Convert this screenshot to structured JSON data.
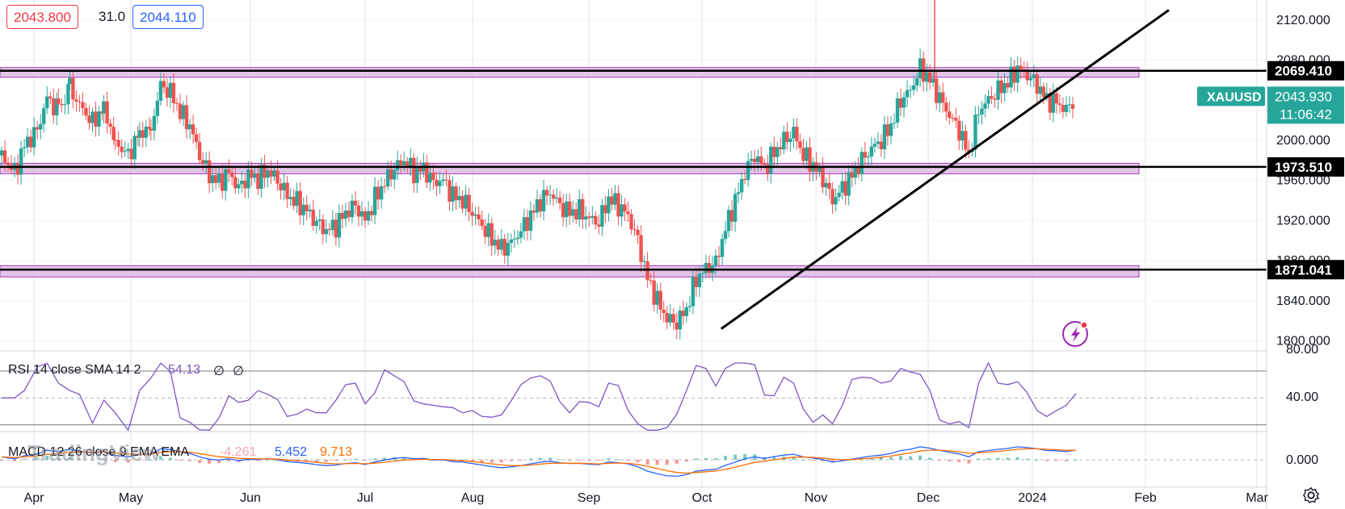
{
  "header": {
    "bid": "2043.800",
    "spread": "31.0",
    "ask": "2044.110"
  },
  "price_axis": {
    "ticks": [
      "2120.000",
      "2080.000",
      "2000.000",
      "1960.000",
      "1920.000",
      "1880.000",
      "1840.000",
      "1800.000"
    ],
    "symbol": "XAUUSD",
    "last_price": "2043.930",
    "countdown": "11:06:42",
    "levels": [
      "2069.410",
      "1973.510",
      "1871.041"
    ]
  },
  "time_axis": {
    "labels": [
      "Apr",
      "May",
      "Jun",
      "Jul",
      "Aug",
      "Sep",
      "Oct",
      "Nov",
      "Dec",
      "2024",
      "Feb",
      "Mar"
    ]
  },
  "rsi": {
    "label": "RSI 14 close SMA 14 2",
    "value": "54.13",
    "extra1": "∅",
    "extra2": "∅",
    "ticks": [
      "80.00",
      "40.00"
    ]
  },
  "macd": {
    "label": "MACD 12 26 close 9 EMA EMA",
    "hist": "-4.261",
    "macd": "5.452",
    "signal": "9.713",
    "ticks": [
      "0.000"
    ]
  },
  "watermark": "TradingView",
  "colors": {
    "up": "#26a69a",
    "down": "#ef5350",
    "zone_fill": "#e1bee7",
    "zone_stroke": "#9c27b0",
    "rsi_line": "#7e57c2",
    "macd_line": "#2962ff",
    "signal_line": "#ff6d00",
    "accent_teal": "#26a69a"
  },
  "chart_data": {
    "type": "candlestick",
    "symbol": "XAUUSD",
    "ylim": [
      1790,
      2140
    ],
    "x_months": [
      "Apr",
      "May",
      "Jun",
      "Jul",
      "Aug",
      "Sep",
      "Oct",
      "Nov",
      "Dec",
      "2024",
      "Feb",
      "Mar"
    ],
    "close_path": [
      [
        0,
        1985
      ],
      [
        8,
        1968
      ],
      [
        14,
        1995
      ],
      [
        22,
        2010
      ],
      [
        28,
        2042
      ],
      [
        35,
        2030
      ],
      [
        42,
        2052
      ],
      [
        48,
        2035
      ],
      [
        56,
        2018
      ],
      [
        63,
        2032
      ],
      [
        70,
        1998
      ],
      [
        78,
        1985
      ],
      [
        85,
        2008
      ],
      [
        92,
        2012
      ],
      [
        98,
        2055
      ],
      [
        104,
        2048
      ],
      [
        110,
        2028
      ],
      [
        116,
        2015
      ],
      [
        122,
        1985
      ],
      [
        128,
        1965
      ],
      [
        134,
        1958
      ],
      [
        140,
        1968
      ],
      [
        146,
        1952
      ],
      [
        152,
        1965
      ],
      [
        158,
        1962
      ],
      [
        164,
        1970
      ],
      [
        170,
        1960
      ],
      [
        176,
        1945
      ],
      [
        182,
        1938
      ],
      [
        188,
        1930
      ],
      [
        194,
        1918
      ],
      [
        200,
        1910
      ],
      [
        206,
        1915
      ],
      [
        212,
        1928
      ],
      [
        218,
        1935
      ],
      [
        224,
        1920
      ],
      [
        230,
        1942
      ],
      [
        236,
        1958
      ],
      [
        242,
        1972
      ],
      [
        248,
        1980
      ],
      [
        254,
        1968
      ],
      [
        260,
        1972
      ],
      [
        266,
        1958
      ],
      [
        272,
        1960
      ],
      [
        278,
        1945
      ],
      [
        284,
        1940
      ],
      [
        290,
        1928
      ],
      [
        296,
        1915
      ],
      [
        302,
        1902
      ],
      [
        308,
        1892
      ],
      [
        314,
        1898
      ],
      [
        320,
        1910
      ],
      [
        326,
        1925
      ],
      [
        332,
        1940
      ],
      [
        338,
        1948
      ],
      [
        344,
        1935
      ],
      [
        350,
        1928
      ],
      [
        356,
        1930
      ],
      [
        362,
        1922
      ],
      [
        368,
        1918
      ],
      [
        374,
        1942
      ],
      [
        380,
        1935
      ],
      [
        386,
        1925
      ],
      [
        392,
        1900
      ],
      [
        398,
        1862
      ],
      [
        404,
        1840
      ],
      [
        410,
        1822
      ],
      [
        416,
        1818
      ],
      [
        422,
        1832
      ],
      [
        428,
        1862
      ],
      [
        434,
        1872
      ],
      [
        440,
        1878
      ],
      [
        446,
        1912
      ],
      [
        452,
        1940
      ],
      [
        458,
        1968
      ],
      [
        464,
        1985
      ],
      [
        470,
        1972
      ],
      [
        476,
        1988
      ],
      [
        482,
        2000
      ],
      [
        488,
        2008
      ],
      [
        494,
        1985
      ],
      [
        500,
        1975
      ],
      [
        506,
        1962
      ],
      [
        512,
        1940
      ],
      [
        518,
        1952
      ],
      [
        524,
        1965
      ],
      [
        530,
        1980
      ],
      [
        536,
        1992
      ],
      [
        542,
        2000
      ],
      [
        548,
        2015
      ],
      [
        554,
        2040
      ],
      [
        560,
        2050
      ],
      [
        566,
        2072
      ],
      [
        572,
        2060
      ],
      [
        578,
        2042
      ],
      [
        584,
        2025
      ],
      [
        590,
        2010
      ],
      [
        596,
        1985
      ],
      [
        602,
        2030
      ],
      [
        608,
        2040
      ],
      [
        614,
        2050
      ],
      [
        620,
        2058
      ],
      [
        626,
        2072
      ],
      [
        632,
        2065
      ],
      [
        638,
        2055
      ],
      [
        644,
        2040
      ],
      [
        650,
        2038
      ],
      [
        656,
        2030
      ],
      [
        662,
        2044
      ]
    ],
    "levels": [
      2069.41,
      1973.51,
      1871.041
    ],
    "trendline": [
      [
        417,
        1812
      ],
      [
        700,
        2108
      ]
    ],
    "rsi_last": 54.13,
    "macd_last": {
      "hist": -4.261,
      "macd": 5.452,
      "signal": 9.713
    }
  }
}
